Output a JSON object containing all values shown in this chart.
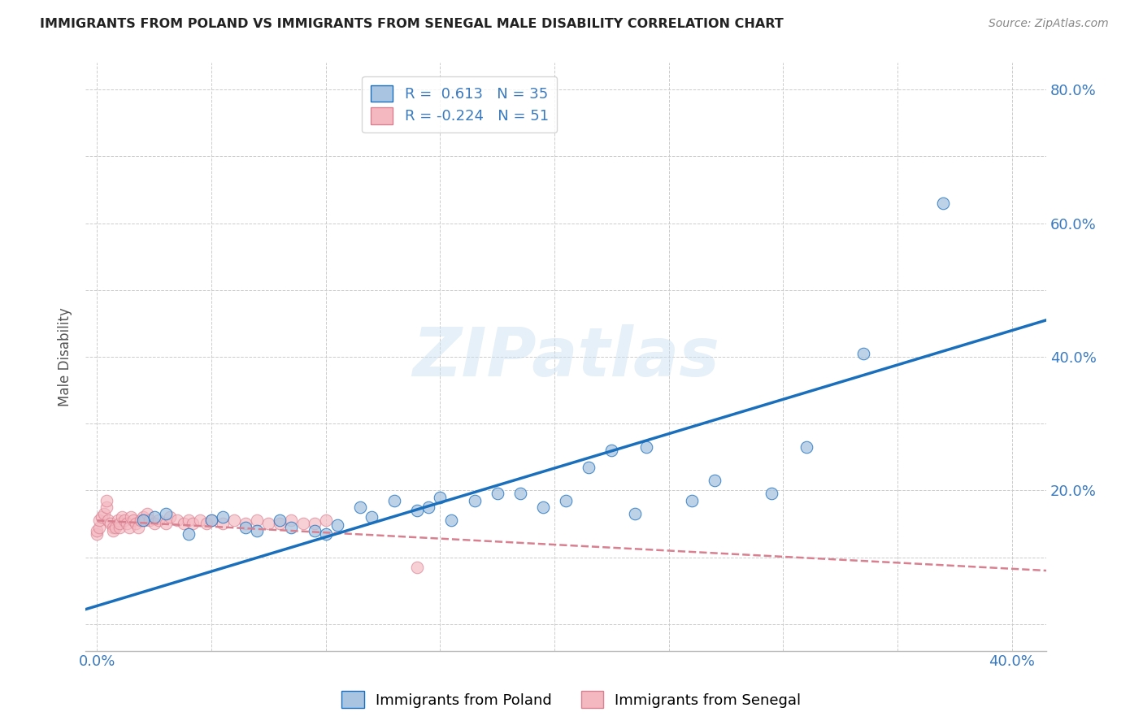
{
  "title": "IMMIGRANTS FROM POLAND VS IMMIGRANTS FROM SENEGAL MALE DISABILITY CORRELATION CHART",
  "source": "Source: ZipAtlas.com",
  "ylabel": "Male Disability",
  "xlim": [
    -0.005,
    0.415
  ],
  "ylim": [
    -0.04,
    0.84
  ],
  "poland_color": "#a8c4e0",
  "senegal_color": "#f4b8c1",
  "poland_line_color": "#1a6fbd",
  "senegal_line_color": "#d88090",
  "poland_R": 0.613,
  "poland_N": 35,
  "senegal_R": -0.224,
  "senegal_N": 51,
  "poland_scatter_x": [
    0.02,
    0.025,
    0.03,
    0.04,
    0.05,
    0.055,
    0.065,
    0.07,
    0.08,
    0.085,
    0.095,
    0.1,
    0.105,
    0.115,
    0.12,
    0.13,
    0.14,
    0.145,
    0.15,
    0.155,
    0.165,
    0.175,
    0.185,
    0.195,
    0.205,
    0.215,
    0.225,
    0.235,
    0.24,
    0.26,
    0.27,
    0.295,
    0.31,
    0.335,
    0.37
  ],
  "poland_scatter_y": [
    0.155,
    0.16,
    0.165,
    0.135,
    0.155,
    0.16,
    0.145,
    0.14,
    0.155,
    0.145,
    0.14,
    0.135,
    0.148,
    0.175,
    0.16,
    0.185,
    0.17,
    0.175,
    0.19,
    0.155,
    0.185,
    0.195,
    0.195,
    0.175,
    0.185,
    0.235,
    0.26,
    0.165,
    0.265,
    0.185,
    0.215,
    0.195,
    0.265,
    0.405,
    0.63
  ],
  "senegal_scatter_x": [
    0.0,
    0.0,
    0.001,
    0.001,
    0.002,
    0.003,
    0.004,
    0.004,
    0.005,
    0.006,
    0.007,
    0.007,
    0.008,
    0.009,
    0.01,
    0.01,
    0.011,
    0.012,
    0.013,
    0.014,
    0.015,
    0.016,
    0.017,
    0.018,
    0.019,
    0.02,
    0.021,
    0.022,
    0.023,
    0.025,
    0.027,
    0.03,
    0.032,
    0.035,
    0.038,
    0.04,
    0.042,
    0.045,
    0.048,
    0.05,
    0.055,
    0.06,
    0.065,
    0.07,
    0.075,
    0.08,
    0.085,
    0.09,
    0.095,
    0.1,
    0.14
  ],
  "senegal_scatter_y": [
    0.135,
    0.14,
    0.145,
    0.155,
    0.16,
    0.165,
    0.175,
    0.185,
    0.155,
    0.15,
    0.145,
    0.14,
    0.145,
    0.155,
    0.145,
    0.15,
    0.16,
    0.155,
    0.15,
    0.145,
    0.16,
    0.155,
    0.15,
    0.145,
    0.155,
    0.16,
    0.155,
    0.165,
    0.155,
    0.15,
    0.155,
    0.15,
    0.16,
    0.155,
    0.15,
    0.155,
    0.15,
    0.155,
    0.15,
    0.155,
    0.15,
    0.155,
    0.15,
    0.155,
    0.15,
    0.15,
    0.155,
    0.15,
    0.15,
    0.155,
    0.085
  ],
  "watermark": "ZIPatlas",
  "background_color": "#ffffff",
  "grid_color": "#cccccc",
  "x_tick_positions": [
    0.0,
    0.05,
    0.1,
    0.15,
    0.2,
    0.25,
    0.3,
    0.35,
    0.4
  ],
  "x_tick_labels": [
    "0.0%",
    "",
    "",
    "",
    "",
    "",
    "",
    "",
    "40.0%"
  ],
  "y_tick_positions": [
    0.0,
    0.1,
    0.2,
    0.3,
    0.4,
    0.5,
    0.6,
    0.7,
    0.8
  ],
  "y_tick_labels_right": [
    "",
    "20.0%",
    "40.0%",
    "60.0%",
    "80.0%"
  ],
  "y_tick_positions_right": [
    0.0,
    0.2,
    0.4,
    0.6,
    0.8
  ],
  "poland_line_x0": -0.005,
  "poland_line_x1": 0.415,
  "poland_line_y0": 0.022,
  "poland_line_y1": 0.455,
  "senegal_line_x0": 0.0,
  "senegal_line_x1": 0.415,
  "senegal_line_y0": 0.155,
  "senegal_line_y1": 0.08
}
